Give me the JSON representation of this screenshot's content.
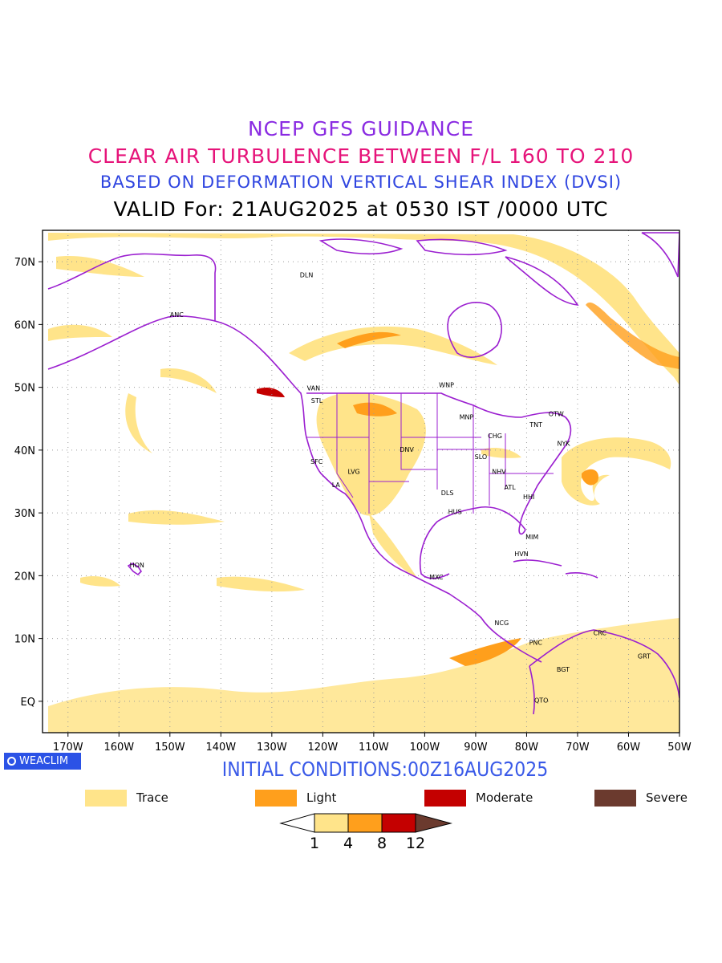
{
  "titles": {
    "line1": "NCEP GFS GUIDANCE",
    "line2": "CLEAR AIR TURBULENCE BETWEEN F/L 160 TO 210",
    "line3": "BASED ON DEFORMATION VERTICAL SHEAR INDEX (DVSI)",
    "line4": "VALID For: 21AUG2025 at 0530 IST /0000 UTC"
  },
  "colors": {
    "line1": "#8a2be2",
    "line2": "#e6147a",
    "line3": "#2f45e0",
    "line4": "#000000",
    "coast": "#9b1fd0",
    "trace": "#ffe48a",
    "light": "#ff9f1c",
    "moderate": "#c40000",
    "severe": "#6b3a2e",
    "initial": "#3a5ae8",
    "badge": "#2b52e6",
    "grid": "#9a9a9a"
  },
  "map": {
    "lon_range": [
      -175,
      -50
    ],
    "lat_range": [
      -5,
      75
    ],
    "lat_ticks": [
      {
        "value": 70,
        "label": "70N"
      },
      {
        "value": 60,
        "label": "60N"
      },
      {
        "value": 50,
        "label": "50N"
      },
      {
        "value": 40,
        "label": "40N"
      },
      {
        "value": 30,
        "label": "30N"
      },
      {
        "value": 20,
        "label": "20N"
      },
      {
        "value": 10,
        "label": "10N"
      },
      {
        "value": 0,
        "label": "EQ"
      }
    ],
    "lon_ticks": [
      {
        "value": -170,
        "label": "170W"
      },
      {
        "value": -160,
        "label": "160W"
      },
      {
        "value": -150,
        "label": "150W"
      },
      {
        "value": -140,
        "label": "140W"
      },
      {
        "value": -130,
        "label": "130W"
      },
      {
        "value": -120,
        "label": "120W"
      },
      {
        "value": -110,
        "label": "110W"
      },
      {
        "value": -100,
        "label": "100W"
      },
      {
        "value": -90,
        "label": "90W"
      },
      {
        "value": -80,
        "label": "80W"
      },
      {
        "value": -70,
        "label": "70W"
      },
      {
        "value": -60,
        "label": "60W"
      },
      {
        "value": -50,
        "label": "50W"
      }
    ],
    "stations": [
      {
        "label": "DLN",
        "lon": -124.5,
        "lat": 67.5
      },
      {
        "label": "ANC",
        "lon": -150.0,
        "lat": 61.2
      },
      {
        "label": "VAN",
        "lon": -123.1,
        "lat": 49.5
      },
      {
        "label": "STL",
        "lon": -122.3,
        "lat": 47.5
      },
      {
        "label": "WNP",
        "lon": -97.2,
        "lat": 50.0
      },
      {
        "label": "MNP",
        "lon": -93.2,
        "lat": 44.9
      },
      {
        "label": "TNT",
        "lon": -79.4,
        "lat": 43.7
      },
      {
        "label": "OTW",
        "lon": -75.7,
        "lat": 45.4
      },
      {
        "label": "CHG",
        "lon": -87.6,
        "lat": 41.9
      },
      {
        "label": "NYK",
        "lon": -74.0,
        "lat": 40.7
      },
      {
        "label": "DNV",
        "lon": -104.9,
        "lat": 39.7
      },
      {
        "label": "SFC",
        "lon": -122.4,
        "lat": 37.8
      },
      {
        "label": "LVG",
        "lon": -115.1,
        "lat": 36.2
      },
      {
        "label": "SLO",
        "lon": -90.2,
        "lat": 38.6
      },
      {
        "label": "NHV",
        "lon": -86.8,
        "lat": 36.2
      },
      {
        "label": "LA",
        "lon": -118.2,
        "lat": 34.1
      },
      {
        "label": "ATL",
        "lon": -84.4,
        "lat": 33.7
      },
      {
        "label": "DLS",
        "lon": -96.8,
        "lat": 32.8
      },
      {
        "label": "HHI",
        "lon": -80.7,
        "lat": 32.2
      },
      {
        "label": "HUS",
        "lon": -95.4,
        "lat": 29.8
      },
      {
        "label": "MIM",
        "lon": -80.2,
        "lat": 25.8
      },
      {
        "label": "HON",
        "lon": -157.9,
        "lat": 21.3
      },
      {
        "label": "HVN",
        "lon": -82.4,
        "lat": 23.1
      },
      {
        "label": "MXC",
        "lon": -99.1,
        "lat": 19.4
      },
      {
        "label": "NCG",
        "lon": -86.3,
        "lat": 12.1
      },
      {
        "label": "CRC",
        "lon": -66.9,
        "lat": 10.5
      },
      {
        "label": "PNC",
        "lon": -79.5,
        "lat": 9.0
      },
      {
        "label": "GRT",
        "lon": -58.2,
        "lat": 6.8
      },
      {
        "label": "BGT",
        "lon": -74.1,
        "lat": 4.7
      },
      {
        "label": "QTO",
        "lon": -78.5,
        "lat": -0.2
      }
    ]
  },
  "badge": {
    "label": "WEACLIM"
  },
  "initial_conditions": "INITIAL CONDITIONS:00Z16AUG2025",
  "legend": [
    {
      "label": "Trace",
      "color": "#ffe48a"
    },
    {
      "label": "Light",
      "color": "#ff9f1c"
    },
    {
      "label": "Moderate",
      "color": "#c40000"
    },
    {
      "label": "Severe",
      "color": "#6b3a2e"
    }
  ],
  "colorbar": {
    "ticks": [
      "1",
      "4",
      "8",
      "12"
    ],
    "colors": [
      "#ffffff",
      "#ffe48a",
      "#ff9f1c",
      "#c40000",
      "#6b3a2e"
    ]
  }
}
